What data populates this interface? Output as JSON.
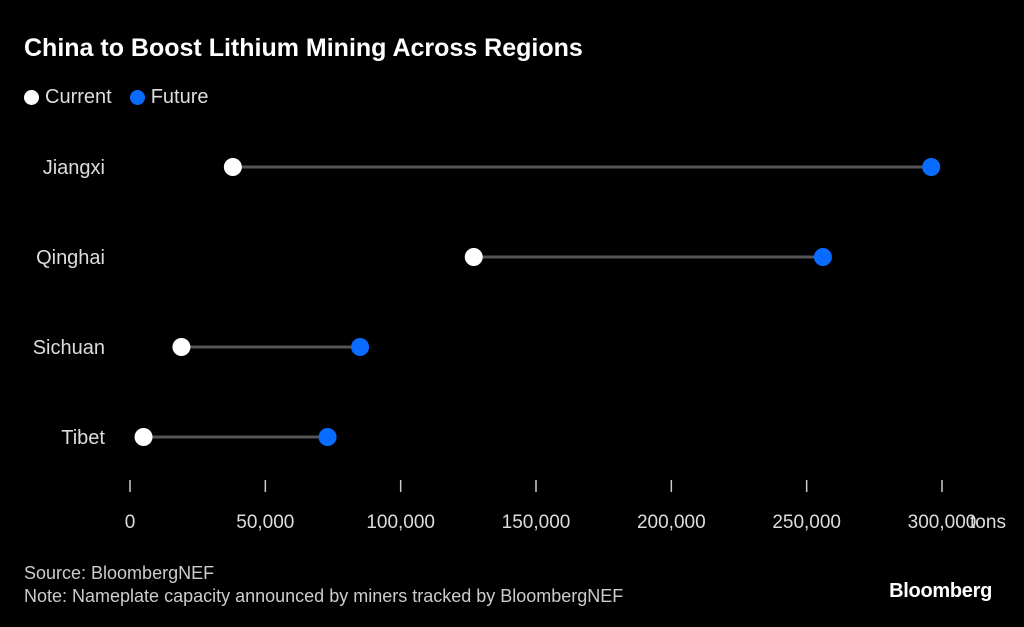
{
  "title": "China to Boost Lithium Mining Across Regions",
  "legend": [
    {
      "label": "Current",
      "color": "#ffffff"
    },
    {
      "label": "Future",
      "color": "#0a6cff"
    }
  ],
  "chart_data": {
    "type": "dumbbell",
    "title": "China to Boost Lithium Mining Across Regions",
    "categories": [
      "Jiangxi",
      "Qinghai",
      "Sichuan",
      "Tibet"
    ],
    "series": [
      {
        "name": "Current",
        "color": "#ffffff",
        "values": [
          38000,
          127000,
          19000,
          5000
        ]
      },
      {
        "name": "Future",
        "color": "#0a6cff",
        "values": [
          296000,
          256000,
          85000,
          73000
        ]
      }
    ],
    "xlim": [
      0,
      300000
    ],
    "xticks": [
      0,
      50000,
      100000,
      150000,
      200000,
      250000,
      300000
    ],
    "xtick_labels": [
      "0",
      "50,000",
      "100,000",
      "150,000",
      "200,000",
      "250,000",
      "300,000"
    ],
    "xunit": "tons",
    "grid": false
  },
  "footer": {
    "source": "Source: BloombergNEF",
    "note": "Note: Nameplate capacity announced by miners tracked by BloombergNEF"
  },
  "logo": "Bloomberg"
}
